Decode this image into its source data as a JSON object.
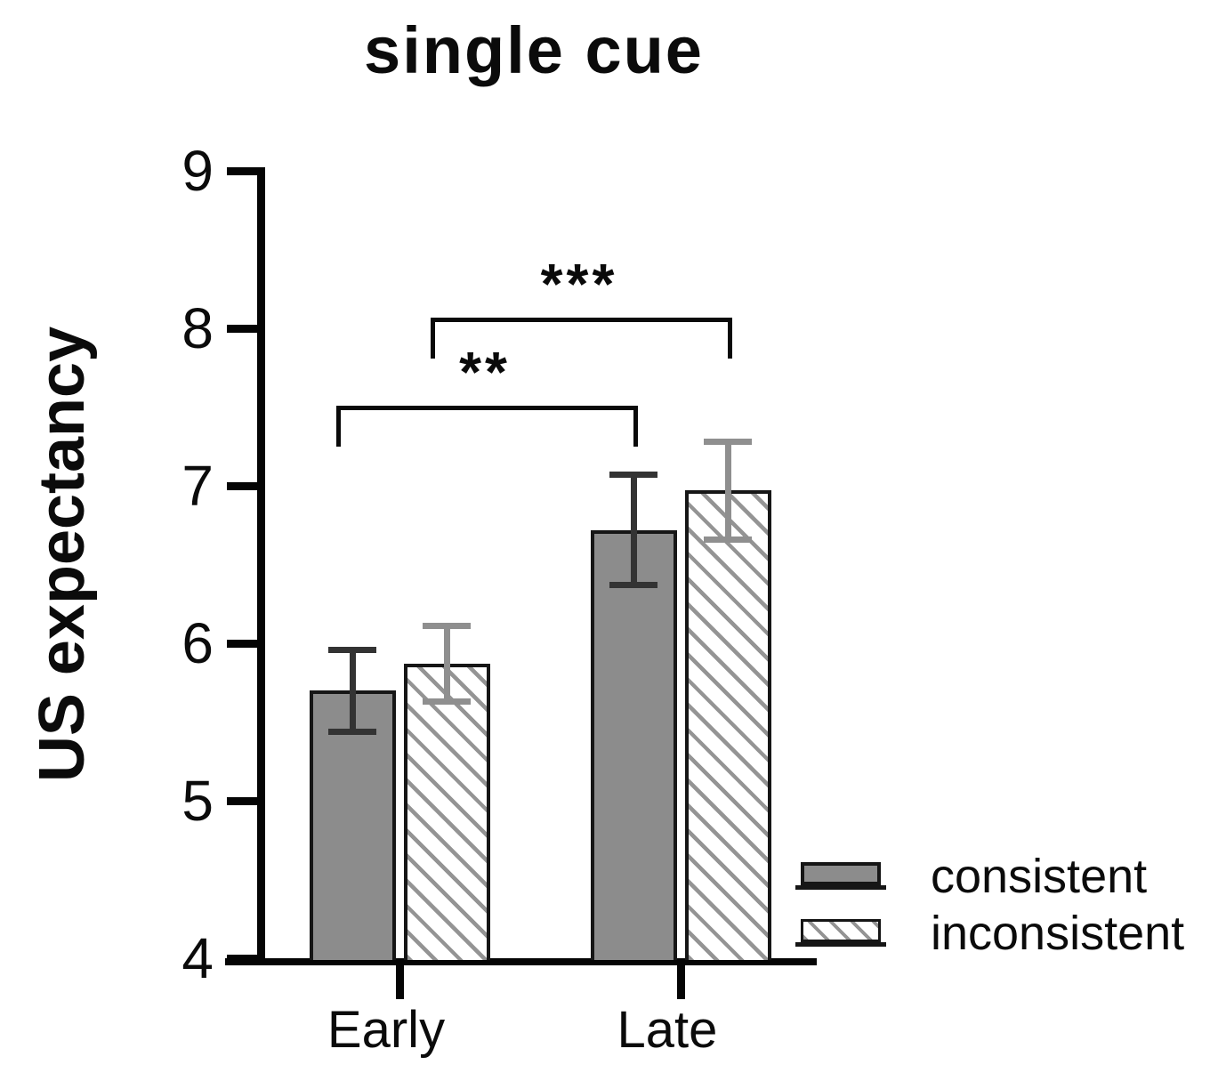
{
  "title": "single cue",
  "y_axis_label": "US expectancy",
  "chart_data": {
    "type": "bar",
    "title": "single cue",
    "xlabel": "",
    "ylabel": "US expectancy",
    "categories": [
      "Early",
      "Late"
    ],
    "series": [
      {
        "name": "consistent",
        "values": [
          5.7,
          6.72
        ],
        "errors": [
          0.26,
          0.35
        ],
        "pattern": "solid",
        "fill_color": "#8c8c8c",
        "error_color": "#333333"
      },
      {
        "name": "inconsistent",
        "values": [
          5.87,
          6.97
        ],
        "errors": [
          0.24,
          0.31
        ],
        "pattern": "diagonal-hatch",
        "fill_color": "#ffffff",
        "hatch_color": "#949494",
        "error_color": "#8f8f8f"
      }
    ],
    "ylim": [
      4,
      9
    ],
    "yticks": [
      4,
      5,
      6,
      7,
      8,
      9
    ],
    "grid": false,
    "legend_position": "bottom-right",
    "significance": [
      {
        "label": "**",
        "group1": 0,
        "series1": 0,
        "group2": 1,
        "series2": 0,
        "height_value": 7.51
      },
      {
        "label": "***",
        "group1": 0,
        "series1": 1,
        "group2": 1,
        "series2": 1,
        "height_value": 8.07
      }
    ]
  }
}
